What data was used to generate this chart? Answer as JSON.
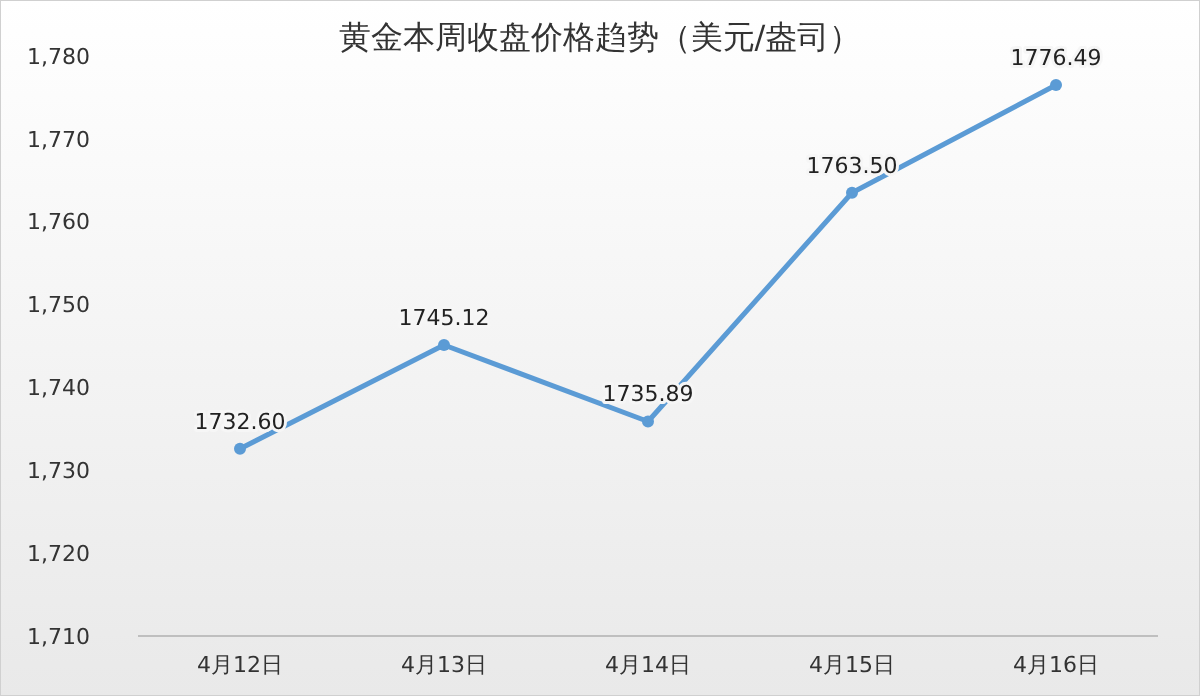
{
  "chart_data": {
    "type": "line",
    "title": "黄金本周收盘价格趋势（美元/盎司）",
    "categories": [
      "4月12日",
      "4月13日",
      "4月14日",
      "4月15日",
      "4月16日"
    ],
    "series": [
      {
        "color": "#5b9bd5",
        "values": [
          1732.6,
          1745.12,
          1735.89,
          1763.5,
          1776.49
        ],
        "value_labels": [
          "1732.60",
          "1745.12",
          "1735.89",
          "1763.50",
          "1776.49"
        ]
      }
    ],
    "ylim": [
      1710,
      1780
    ],
    "yticks": [
      {
        "value": 1710,
        "label": "1,710"
      },
      {
        "value": 1720,
        "label": "1,720"
      },
      {
        "value": 1730,
        "label": "1,730"
      },
      {
        "value": 1740,
        "label": "1,740"
      },
      {
        "value": 1750,
        "label": "1,750"
      },
      {
        "value": 1760,
        "label": "1,760"
      },
      {
        "value": 1770,
        "label": "1,770"
      },
      {
        "value": 1780,
        "label": "1,780"
      }
    ],
    "grid": false,
    "marker": "circle",
    "line_style": "solid"
  }
}
